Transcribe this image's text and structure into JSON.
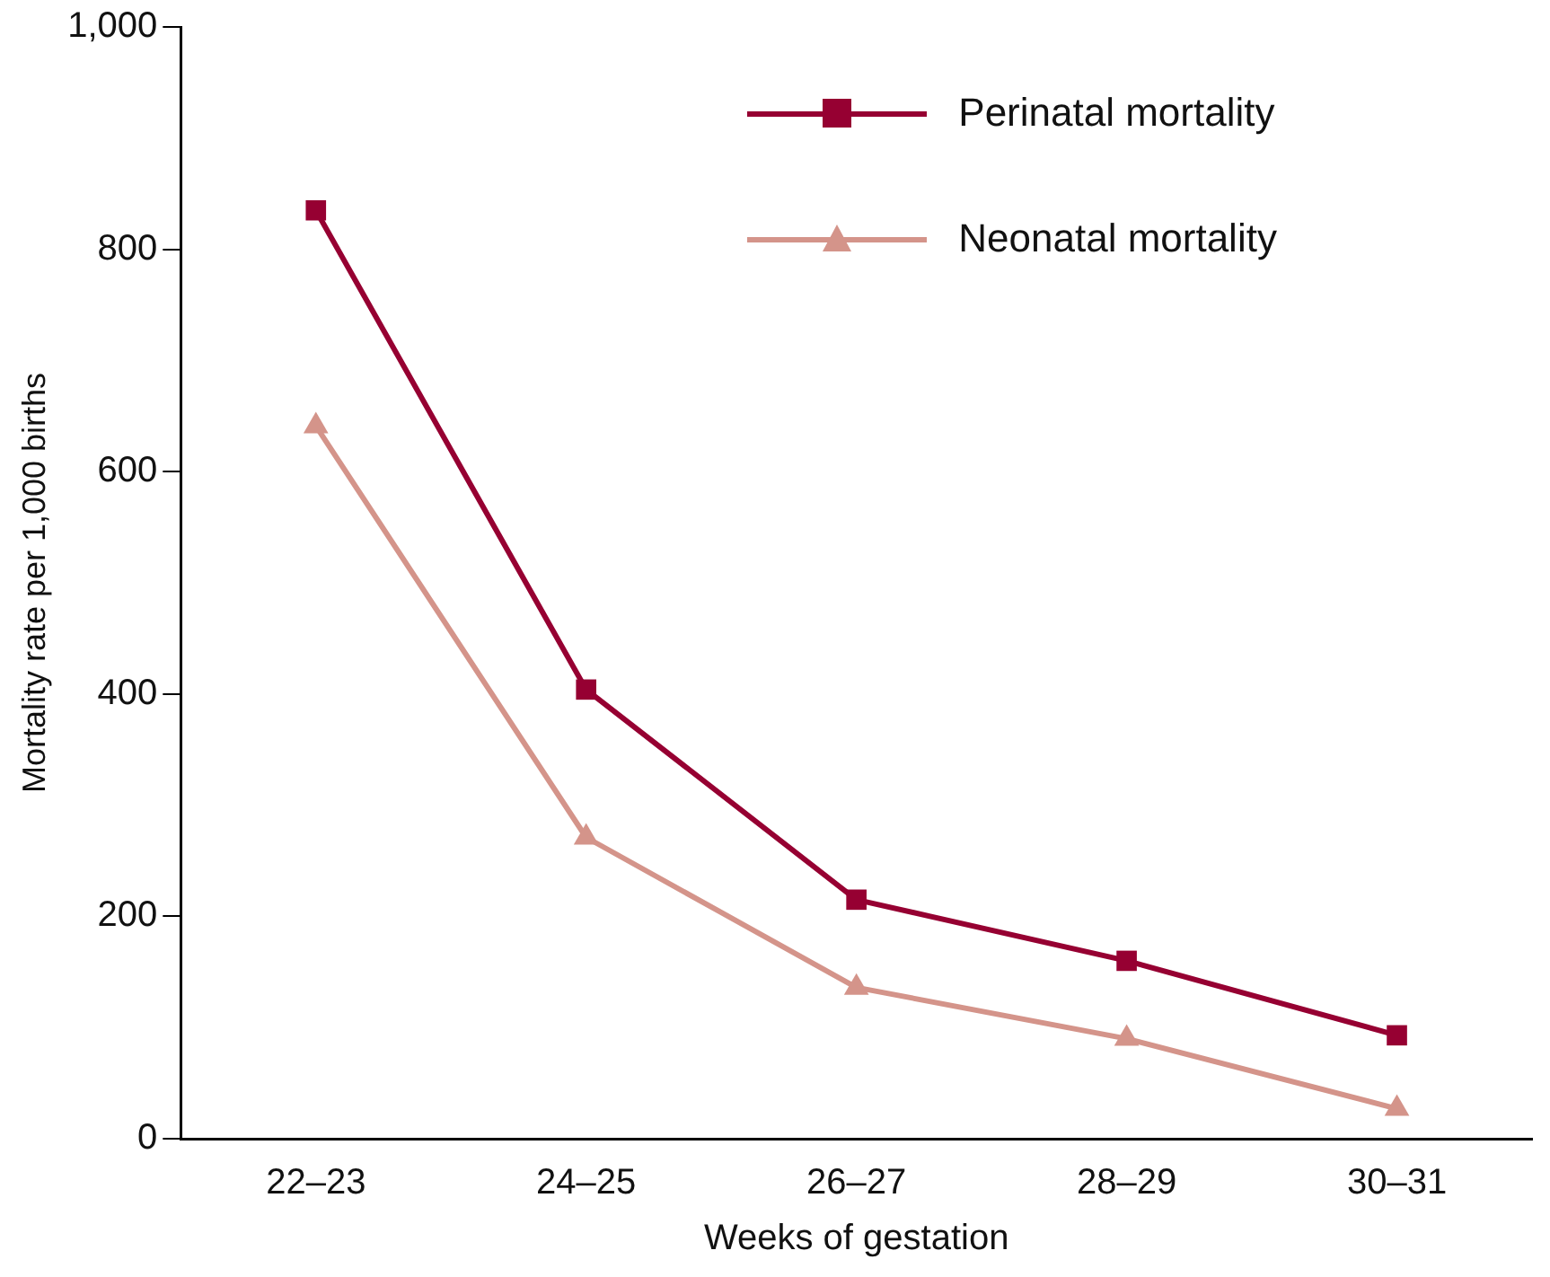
{
  "chart_data": {
    "type": "line",
    "xlabel": "Weeks of gestation",
    "ylabel": "Mortality rate per 1,000 births",
    "categories": [
      "22–23",
      "24–25",
      "26–27",
      "28–29",
      "30–31"
    ],
    "series": [
      {
        "name": "Perinatal mortality",
        "color": "#960032",
        "marker": "square",
        "values": [
          835,
          404,
          215,
          160,
          93
        ]
      },
      {
        "name": "Neonatal mortality",
        "color": "#d4948a",
        "marker": "triangle",
        "values": [
          641,
          271,
          136,
          90,
          27
        ]
      }
    ],
    "ylim": [
      0,
      1000
    ],
    "yticks": [
      0,
      200,
      400,
      600,
      800,
      {
        "value": 1000,
        "label": "1,000"
      }
    ],
    "grid": false,
    "legend": "top right",
    "line_style": "solid"
  }
}
